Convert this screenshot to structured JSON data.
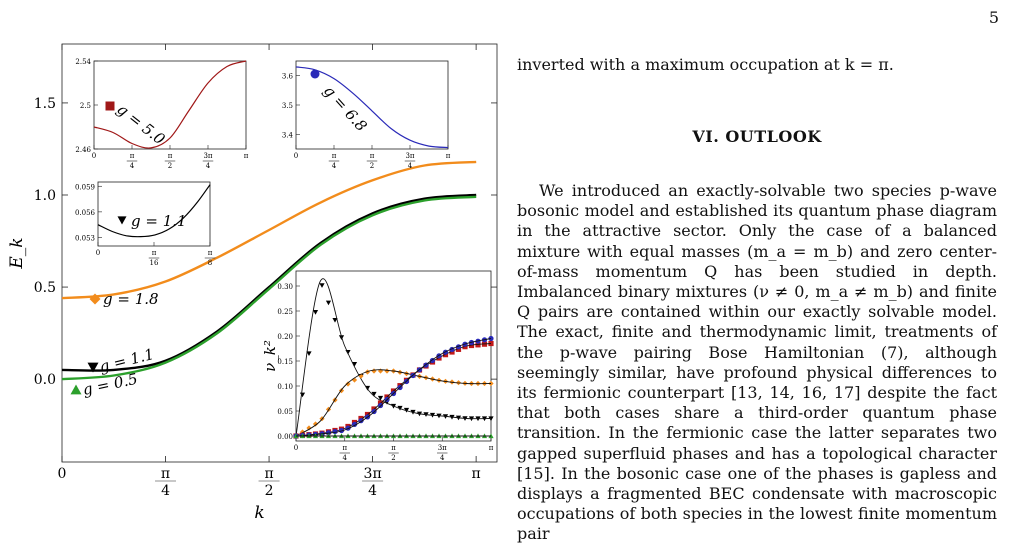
{
  "page_number": "5",
  "right_column": {
    "paragraph_top": "inverted with a maximum occupation at k = π.",
    "heading": "VI.   OUTLOOK",
    "paragraph_main": "We introduced an exactly-solvable two species p-wave bosonic model and established its quantum phase diagram in the attractive sector. Only the case of a balanced mixture with equal masses (m_a = m_b) and zero center-of-mass momentum Q has been studied in depth. Imbalanced binary mixtures (ν ≠ 0, m_a ≠ m_b) and finite Q pairs are contained within our exactly solvable model. The exact, finite and thermodynamic limit, treatments of the p-wave pairing Bose Hamiltonian (7), although seemingly similar, have profound physical differences to its fermionic counterpart [13, 14, 16, 17] despite the fact that both cases share a third-order quantum phase transition. In the fermionic case the latter separates two gapped superfluid phases and has a topological character [15]. In the bosonic case one of the phases is gapless and displays a fragmented BEC condensate with macroscopic occupations of both species in the lowest finite momentum pair"
  },
  "chart_data": [
    {
      "type": "line",
      "panel": "main",
      "xlabel": "k",
      "ylabel": "E_k",
      "xlim": [
        0,
        3.3
      ],
      "ylim": [
        -0.45,
        1.82
      ],
      "x_ticks": [
        "0",
        "π/4",
        "π/2",
        "3π/4",
        "π"
      ],
      "y_ticks": [
        "0.0",
        "0.5",
        "1.0",
        "1.5"
      ],
      "series": [
        {
          "name": "g = 1.8",
          "color": "#f28c1c",
          "marker": "diamond",
          "x": [
            0,
            0.393,
            0.785,
            1.178,
            1.571,
            1.963,
            2.356,
            2.749,
            3.142
          ],
          "values": [
            0.44,
            0.46,
            0.53,
            0.66,
            0.81,
            0.96,
            1.08,
            1.16,
            1.18
          ]
        },
        {
          "name": "g = 1.1",
          "color": "#000000",
          "marker": "triangle-down",
          "x": [
            0,
            0.393,
            0.785,
            1.178,
            1.571,
            1.963,
            2.356,
            2.749,
            3.142
          ],
          "values": [
            0.05,
            0.05,
            0.1,
            0.26,
            0.5,
            0.74,
            0.9,
            0.98,
            1.0
          ]
        },
        {
          "name": "g = 0.5",
          "color": "#2ca02c",
          "marker": "triangle-up",
          "x": [
            0,
            0.393,
            0.785,
            1.178,
            1.571,
            1.963,
            2.356,
            2.749,
            3.142
          ],
          "values": [
            0.0,
            0.02,
            0.09,
            0.25,
            0.49,
            0.73,
            0.89,
            0.97,
            0.99
          ]
        }
      ]
    },
    {
      "type": "line",
      "panel": "inset-top-left",
      "label": "g = 5.0",
      "color": "#a01818",
      "marker": "square",
      "ylim": [
        2.46,
        2.54
      ],
      "x_ticks": [
        "0",
        "π/4",
        "π/2",
        "3π/4",
        "π"
      ],
      "y_ticks": [
        "2.46",
        "2.5",
        "2.54"
      ],
      "x": [
        0,
        0.393,
        0.785,
        1.178,
        1.571,
        1.963,
        2.356,
        2.749,
        3.142
      ],
      "values": [
        2.48,
        2.475,
        2.465,
        2.461,
        2.47,
        2.495,
        2.52,
        2.535,
        2.54
      ]
    },
    {
      "type": "line",
      "panel": "inset-top-middle",
      "label": "g = 6.8",
      "color": "#2a2ab8",
      "marker": "circle",
      "ylim": [
        3.35,
        3.65
      ],
      "x_ticks": [
        "0",
        "π/4",
        "π/2",
        "3π/4",
        "π"
      ],
      "y_ticks": [
        "3.4",
        "3.5",
        "3.6"
      ],
      "x": [
        0,
        0.393,
        0.785,
        1.178,
        1.571,
        1.963,
        2.356,
        2.749,
        3.142
      ],
      "values": [
        3.63,
        3.62,
        3.59,
        3.54,
        3.48,
        3.42,
        3.38,
        3.36,
        3.355
      ]
    },
    {
      "type": "line",
      "panel": "inset-mid-left",
      "label": "g = 1.1",
      "color": "#000000",
      "marker": "triangle-down",
      "ylim": [
        0.052,
        0.0595
      ],
      "x_ticks": [
        "0",
        "π/16",
        "π/8"
      ],
      "y_ticks": [
        "0.053",
        "0.056",
        "0.059"
      ],
      "x": [
        0,
        0.05,
        0.1,
        0.15,
        0.2,
        0.25,
        0.3,
        0.35,
        0.393
      ],
      "values": [
        0.0545,
        0.0537,
        0.0532,
        0.0531,
        0.0533,
        0.054,
        0.0553,
        0.0572,
        0.0592
      ]
    },
    {
      "type": "line",
      "panel": "inset-occupation",
      "ylabel": "ν_k²",
      "ylim": [
        -0.01,
        0.33
      ],
      "x_ticks": [
        "0",
        "π/4",
        "π/2",
        "3π/4",
        "π"
      ],
      "y_ticks": [
        "0.00",
        "0.05",
        "0.10",
        "0.15",
        "0.20",
        "0.25",
        "0.30"
      ],
      "series": [
        {
          "color": "#000000",
          "marker": "triangle-down",
          "x": [
            0,
            0.393,
            0.785,
            1.178,
            1.571,
            1.963,
            2.356,
            2.749,
            3.142
          ],
          "values": [
            0.0,
            0.31,
            0.18,
            0.09,
            0.06,
            0.045,
            0.04,
            0.035,
            0.035
          ]
        },
        {
          "color": "#f28c1c",
          "marker": "diamond",
          "x": [
            0,
            0.393,
            0.785,
            1.178,
            1.571,
            1.963,
            2.356,
            2.749,
            3.142
          ],
          "values": [
            0.0,
            0.03,
            0.1,
            0.13,
            0.13,
            0.12,
            0.11,
            0.105,
            0.105
          ]
        },
        {
          "color": "#c01818",
          "marker": "square",
          "x": [
            0,
            0.393,
            0.785,
            1.178,
            1.571,
            1.963,
            2.356,
            2.749,
            3.142
          ],
          "values": [
            0.0,
            0.005,
            0.015,
            0.045,
            0.09,
            0.13,
            0.16,
            0.18,
            0.185
          ]
        },
        {
          "color": "#2a2ab8",
          "marker": "circle",
          "x": [
            0,
            0.393,
            0.785,
            1.178,
            1.571,
            1.963,
            2.356,
            2.749,
            3.142
          ],
          "values": [
            0.0,
            0.004,
            0.012,
            0.04,
            0.085,
            0.13,
            0.165,
            0.185,
            0.195
          ]
        },
        {
          "color": "#2ca02c",
          "marker": "triangle-up",
          "x": [
            0,
            0.393,
            0.785,
            1.178,
            1.571,
            1.963,
            2.356,
            2.749,
            3.142
          ],
          "values": [
            0.0,
            0.0,
            0.0,
            0.0,
            0.0,
            0.0,
            0.0,
            0.0,
            0.0
          ]
        }
      ]
    }
  ]
}
